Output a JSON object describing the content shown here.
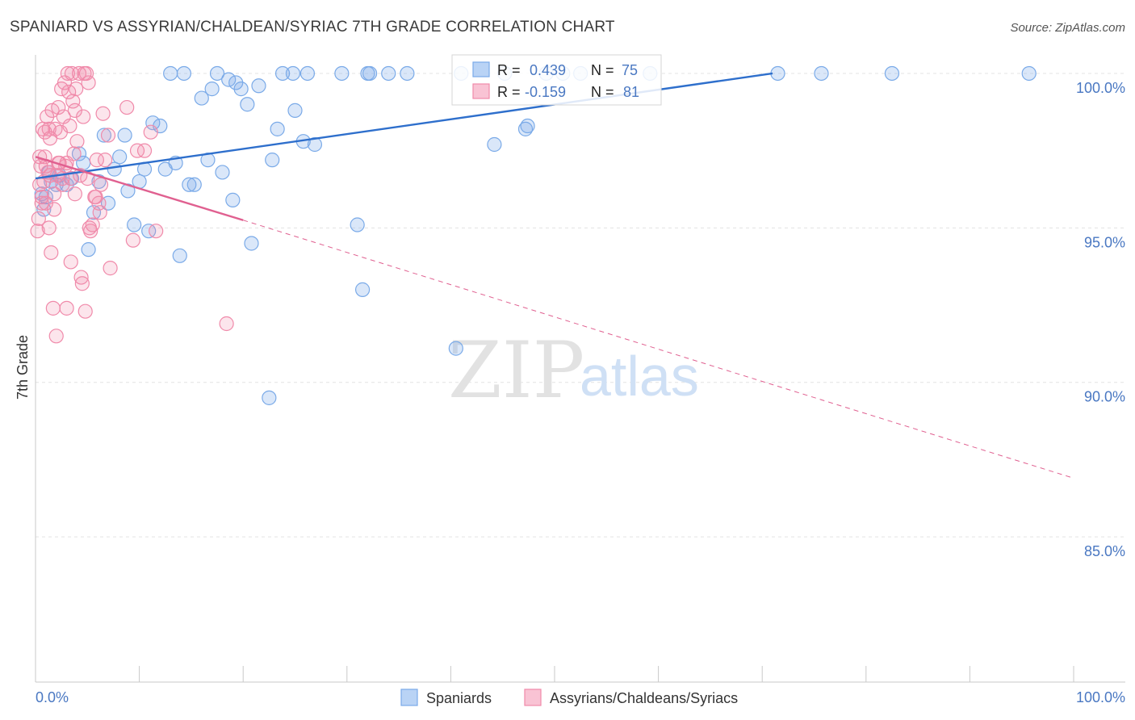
{
  "chart_data": {
    "type": "scatter",
    "title": "SPANIARD VS ASSYRIAN/CHALDEAN/SYRIAC 7TH GRADE CORRELATION CHART",
    "source": "Source: ZipAtlas.com",
    "ylabel": "7th Grade",
    "xlabel": "",
    "xlim": [
      0,
      100
    ],
    "ylim": [
      80.3,
      100.6
    ],
    "yticks": [
      {
        "value": 100,
        "label": "100.0%"
      },
      {
        "value": 95,
        "label": "95.0%"
      },
      {
        "value": 90,
        "label": "90.0%"
      },
      {
        "value": 85,
        "label": "85.0%"
      }
    ],
    "xtick_labels": {
      "min": "0.0%",
      "max": "100.0%"
    },
    "grid": true,
    "legend_position": "bottom-center",
    "watermark": {
      "zip": "ZIP",
      "atlas": "atlas"
    },
    "series": [
      {
        "name": "Spaniards",
        "color": "#7aaae8",
        "line_color": "#2e6fcc",
        "R": "0.439",
        "N": "75",
        "trend": {
          "x0": 0,
          "y0": 96.6,
          "x1": 71,
          "y1": 100
        },
        "points": [
          [
            0.6,
            96.1
          ],
          [
            0.8,
            95.6
          ],
          [
            1.0,
            96.0
          ],
          [
            1.3,
            96.8
          ],
          [
            1.5,
            96.5
          ],
          [
            2.0,
            96.4
          ],
          [
            2.3,
            96.7
          ],
          [
            3.0,
            96.4
          ],
          [
            3.5,
            96.6
          ],
          [
            4.2,
            97.4
          ],
          [
            4.6,
            97.1
          ],
          [
            5.1,
            94.3
          ],
          [
            5.6,
            95.5
          ],
          [
            6.1,
            96.5
          ],
          [
            6.6,
            98.0
          ],
          [
            7.0,
            95.8
          ],
          [
            7.6,
            96.9
          ],
          [
            8.1,
            97.3
          ],
          [
            8.6,
            98.0
          ],
          [
            8.9,
            96.2
          ],
          [
            9.5,
            95.1
          ],
          [
            10.0,
            96.5
          ],
          [
            10.5,
            96.9
          ],
          [
            10.9,
            94.9
          ],
          [
            11.3,
            98.4
          ],
          [
            12.0,
            98.3
          ],
          [
            12.5,
            96.9
          ],
          [
            13.0,
            100.0
          ],
          [
            13.5,
            97.1
          ],
          [
            13.9,
            94.1
          ],
          [
            14.3,
            100.0
          ],
          [
            14.8,
            96.4
          ],
          [
            15.3,
            96.4
          ],
          [
            16.0,
            99.2
          ],
          [
            16.6,
            97.2
          ],
          [
            17.0,
            99.5
          ],
          [
            17.5,
            100.0
          ],
          [
            18.0,
            96.8
          ],
          [
            18.6,
            99.8
          ],
          [
            19.0,
            95.9
          ],
          [
            19.3,
            99.7
          ],
          [
            19.8,
            99.5
          ],
          [
            20.4,
            99.0
          ],
          [
            20.8,
            94.5
          ],
          [
            21.5,
            99.6
          ],
          [
            22.5,
            89.5
          ],
          [
            22.8,
            97.2
          ],
          [
            23.3,
            98.2
          ],
          [
            23.8,
            100.0
          ],
          [
            24.8,
            100.0
          ],
          [
            25.0,
            98.8
          ],
          [
            25.8,
            97.8
          ],
          [
            26.2,
            100.0
          ],
          [
            26.9,
            97.7
          ],
          [
            29.5,
            100.0
          ],
          [
            31.0,
            95.1
          ],
          [
            31.5,
            93.0
          ],
          [
            32.0,
            100.0
          ],
          [
            32.2,
            100.0
          ],
          [
            34.0,
            100.0
          ],
          [
            35.8,
            100.0
          ],
          [
            40.5,
            91.1
          ],
          [
            41.0,
            100.0
          ],
          [
            44.2,
            97.7
          ],
          [
            45.2,
            100.0
          ],
          [
            47.2,
            98.2
          ],
          [
            47.4,
            98.3
          ],
          [
            49.2,
            100.0
          ],
          [
            50.8,
            100.0
          ],
          [
            52.5,
            100.0
          ],
          [
            59.2,
            100.0
          ],
          [
            71.5,
            100.0
          ],
          [
            75.7,
            100.0
          ],
          [
            82.5,
            100.0
          ],
          [
            95.7,
            100.0
          ]
        ]
      },
      {
        "name": "Assyrians/Chaldeans/Syriacs",
        "color": "#f08aaa",
        "line_color": "#e06090",
        "R": "-0.159",
        "N": "81",
        "trend": {
          "x0": 0,
          "y0": 97.3,
          "x1": 20,
          "y1": 95.25,
          "x2": 100,
          "y2": 86.9
        },
        "points": [
          [
            0.2,
            94.9
          ],
          [
            0.3,
            95.3
          ],
          [
            0.4,
            96.4
          ],
          [
            0.5,
            97.0
          ],
          [
            0.6,
            96.0
          ],
          [
            0.7,
            98.2
          ],
          [
            0.8,
            96.5
          ],
          [
            0.9,
            97.3
          ],
          [
            1.0,
            95.8
          ],
          [
            1.1,
            98.6
          ],
          [
            1.2,
            96.8
          ],
          [
            1.3,
            95.0
          ],
          [
            1.4,
            97.9
          ],
          [
            1.5,
            94.2
          ],
          [
            1.6,
            98.8
          ],
          [
            1.7,
            92.4
          ],
          [
            1.8,
            96.1
          ],
          [
            1.9,
            98.2
          ],
          [
            2.0,
            91.5
          ],
          [
            2.1,
            96.7
          ],
          [
            2.2,
            98.9
          ],
          [
            2.3,
            97.1
          ],
          [
            2.4,
            98.1
          ],
          [
            2.5,
            99.5
          ],
          [
            2.6,
            96.6
          ],
          [
            2.7,
            98.6
          ],
          [
            2.8,
            99.7
          ],
          [
            2.9,
            97.0
          ],
          [
            3.0,
            92.4
          ],
          [
            3.1,
            100.0
          ],
          [
            3.2,
            99.4
          ],
          [
            3.3,
            98.3
          ],
          [
            3.4,
            93.9
          ],
          [
            3.5,
            100.0
          ],
          [
            3.6,
            99.1
          ],
          [
            3.7,
            97.4
          ],
          [
            3.8,
            98.8
          ],
          [
            3.9,
            99.5
          ],
          [
            4.0,
            97.8
          ],
          [
            4.2,
            100.0
          ],
          [
            4.4,
            93.4
          ],
          [
            4.5,
            93.2
          ],
          [
            4.6,
            98.6
          ],
          [
            4.7,
            100.0
          ],
          [
            4.8,
            92.3
          ],
          [
            4.9,
            100.0
          ],
          [
            5.0,
            96.6
          ],
          [
            5.1,
            99.7
          ],
          [
            5.3,
            94.9
          ],
          [
            5.5,
            95.1
          ],
          [
            5.7,
            96.0
          ],
          [
            5.9,
            97.2
          ],
          [
            6.1,
            95.8
          ],
          [
            6.3,
            96.4
          ],
          [
            6.5,
            98.7
          ],
          [
            6.7,
            97.2
          ],
          [
            7.0,
            98.0
          ],
          [
            7.2,
            93.7
          ],
          [
            8.8,
            98.9
          ],
          [
            9.4,
            94.6
          ],
          [
            9.8,
            97.5
          ],
          [
            10.5,
            97.5
          ],
          [
            11.1,
            98.1
          ],
          [
            11.6,
            94.9
          ],
          [
            18.4,
            91.9
          ],
          [
            0.6,
            95.8
          ],
          [
            1.0,
            97.0
          ],
          [
            1.4,
            96.7
          ],
          [
            1.8,
            95.6
          ],
          [
            2.2,
            97.1
          ],
          [
            2.6,
            96.4
          ],
          [
            3.0,
            97.1
          ],
          [
            3.4,
            96.6
          ],
          [
            3.8,
            96.1
          ],
          [
            4.3,
            96.7
          ],
          [
            5.2,
            95.0
          ],
          [
            5.8,
            96.0
          ],
          [
            6.2,
            95.5
          ],
          [
            0.4,
            97.3
          ],
          [
            0.9,
            98.1
          ],
          [
            1.3,
            98.2
          ]
        ]
      }
    ]
  }
}
